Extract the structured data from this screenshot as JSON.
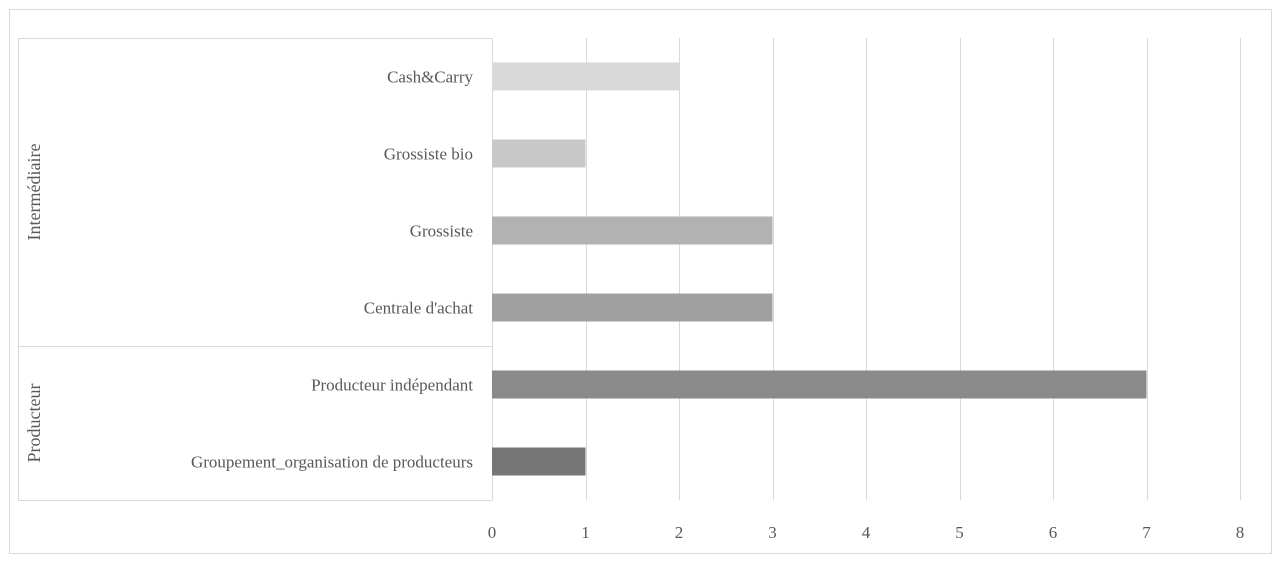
{
  "chart_data": {
    "type": "bar",
    "orientation": "horizontal",
    "title": "",
    "xlabel": "",
    "ylabel": "",
    "xlim": [
      0,
      8
    ],
    "x_ticks": [
      "0",
      "1",
      "2",
      "3",
      "4",
      "5",
      "6",
      "7",
      "8"
    ],
    "grid": true,
    "legend": "none",
    "groups": [
      {
        "name": "Intermédiaire",
        "categories": [
          {
            "label": "Cash&Carry",
            "value": 2,
            "color": "#d9d9d9"
          },
          {
            "label": "Grossiste bio",
            "value": 1,
            "color": "#c8c8c8"
          },
          {
            "label": "Grossiste",
            "value": 3,
            "color": "#b2b2b2"
          },
          {
            "label": "Centrale d'achat",
            "value": 3,
            "color": "#a0a0a0"
          }
        ]
      },
      {
        "name": "Producteur",
        "categories": [
          {
            "label": "Producteur indépendant",
            "value": 7,
            "color": "#8a8a8a"
          },
          {
            "label": "Groupement_organisation de producteurs",
            "value": 1,
            "color": "#767676"
          }
        ]
      }
    ]
  },
  "colors": {
    "gridline": "#d9d9d9",
    "frame": "#d9d9d9",
    "text": "#595959"
  }
}
